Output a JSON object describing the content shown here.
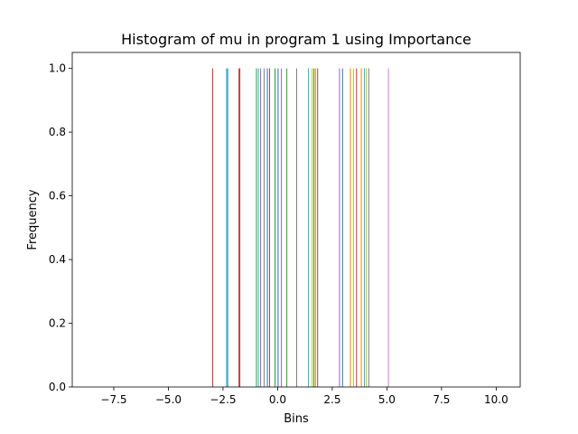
{
  "chart_data": {
    "type": "bar",
    "title": "Histogram of mu in program 1 using Importance",
    "xlabel": "Bins",
    "ylabel": "Frequency",
    "xlim": [
      -9.4,
      11.1
    ],
    "ylim": [
      0,
      1.05
    ],
    "xticks": [
      -7.5,
      -5.0,
      -2.5,
      0.0,
      2.5,
      5.0,
      7.5,
      10.0
    ],
    "xtick_labels": [
      "−7.5",
      "−5.0",
      "−2.5",
      "0.0",
      "2.5",
      "5.0",
      "7.5",
      "10.0"
    ],
    "yticks": [
      0.0,
      0.2,
      0.4,
      0.6,
      0.8,
      1.0
    ],
    "ytick_labels": [
      "0.0",
      "0.2",
      "0.4",
      "0.6",
      "0.8",
      "1.0"
    ],
    "grid": false,
    "legend": false,
    "bar_width": 0.04,
    "series": [
      {
        "color": "#d62728",
        "x": [
          -2.97,
          -1.73,
          3.61
        ]
      },
      {
        "color": "#1f77b4",
        "x": [
          -2.33,
          -0.47,
          0.02,
          2.97
        ]
      },
      {
        "color": "#17becf",
        "x": [
          -2.28,
          -0.88,
          1.41,
          3.97
        ]
      },
      {
        "color": "#8c564b",
        "x": [
          -1.77,
          -0.37,
          1.83
        ]
      },
      {
        "color": "#2ca02c",
        "x": [
          -0.97,
          -0.12,
          0.42,
          1.66
        ]
      },
      {
        "color": "#9467bd",
        "x": [
          -0.78,
          0.17,
          2.83
        ]
      },
      {
        "color": "#ff7f0e",
        "x": [
          1.73,
          3.33,
          3.83
        ]
      },
      {
        "color": "#7f7f7f",
        "x": [
          -0.62,
          0.87,
          4.17
        ]
      },
      {
        "color": "#bcbd22",
        "x": [
          1.58,
          3.47,
          4.06
        ]
      },
      {
        "color": "#e377c2",
        "x": [
          5.07
        ]
      }
    ],
    "values_note_height": 1.0
  }
}
